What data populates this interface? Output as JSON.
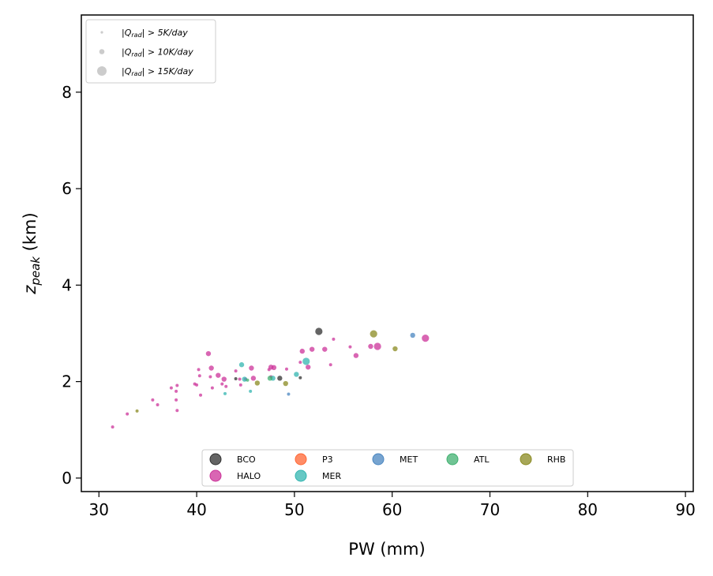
{
  "chart_data": {
    "type": "scatter",
    "title": "",
    "xlabel": "PW (mm)",
    "ylabel_main": "z",
    "ylabel_sub": "peak",
    "ylabel_unit": " (km)",
    "xlim": [
      28.2,
      90.8
    ],
    "ylim": [
      -0.28,
      9.6
    ],
    "xticks": [
      30,
      40,
      50,
      60,
      70,
      80,
      90
    ],
    "yticks": [
      0,
      2,
      4,
      6,
      8
    ],
    "grid": false,
    "size_legend": {
      "placement": "upper-left",
      "entries": [
        {
          "label_main": "|Q",
          "label_sub": "rad",
          "label_rest": "| > 5K/day"
        },
        {
          "label_main": "|Q",
          "label_sub": "rad",
          "label_rest": "| > 10K/day"
        },
        {
          "label_main": "|Q",
          "label_sub": "rad",
          "label_rest": "| > 15K/day"
        }
      ]
    },
    "platform_legend": {
      "placement": "lower-center",
      "entries": [
        {
          "name": "BCO",
          "color": "#303030"
        },
        {
          "name": "HALO",
          "color": "#cc3399"
        },
        {
          "name": "P3",
          "color": "#ff6633"
        },
        {
          "name": "MER",
          "color": "#33b5b0"
        },
        {
          "name": "MET",
          "color": "#4a86c0"
        },
        {
          "name": "ATL",
          "color": "#40b070"
        },
        {
          "name": "RHB",
          "color": "#8a8a20"
        }
      ]
    },
    "series": [
      {
        "name": "HALO",
        "color": "#cc3399",
        "points": [
          {
            "x": 31.4,
            "y": 1.06,
            "s": 1
          },
          {
            "x": 32.9,
            "y": 1.33,
            "s": 1
          },
          {
            "x": 35.5,
            "y": 1.62,
            "s": 1
          },
          {
            "x": 36.0,
            "y": 1.52,
            "s": 1
          },
          {
            "x": 37.4,
            "y": 1.87,
            "s": 1
          },
          {
            "x": 37.9,
            "y": 1.8,
            "s": 1
          },
          {
            "x": 38.0,
            "y": 1.92,
            "s": 1
          },
          {
            "x": 37.9,
            "y": 1.62,
            "s": 1
          },
          {
            "x": 38.0,
            "y": 1.4,
            "s": 1
          },
          {
            "x": 39.8,
            "y": 1.95,
            "s": 1
          },
          {
            "x": 40.0,
            "y": 1.93,
            "s": 1
          },
          {
            "x": 40.2,
            "y": 2.25,
            "s": 1
          },
          {
            "x": 40.3,
            "y": 2.12,
            "s": 1
          },
          {
            "x": 40.4,
            "y": 1.72,
            "s": 1
          },
          {
            "x": 41.2,
            "y": 2.58,
            "s": 2
          },
          {
            "x": 41.5,
            "y": 2.28,
            "s": 2
          },
          {
            "x": 41.4,
            "y": 2.1,
            "s": 1
          },
          {
            "x": 41.6,
            "y": 1.87,
            "s": 1
          },
          {
            "x": 42.2,
            "y": 2.13,
            "s": 2
          },
          {
            "x": 42.6,
            "y": 1.95,
            "s": 1
          },
          {
            "x": 42.8,
            "y": 2.05,
            "s": 2
          },
          {
            "x": 43.0,
            "y": 1.9,
            "s": 1
          },
          {
            "x": 44.0,
            "y": 2.22,
            "s": 1
          },
          {
            "x": 44.4,
            "y": 2.05,
            "s": 1
          },
          {
            "x": 44.5,
            "y": 1.93,
            "s": 1
          },
          {
            "x": 45.0,
            "y": 2.05,
            "s": 1
          },
          {
            "x": 45.6,
            "y": 2.28,
            "s": 2
          },
          {
            "x": 45.8,
            "y": 2.07,
            "s": 2
          },
          {
            "x": 47.4,
            "y": 2.25,
            "s": 1
          },
          {
            "x": 47.6,
            "y": 2.3,
            "s": 2
          },
          {
            "x": 47.9,
            "y": 2.29,
            "s": 2
          },
          {
            "x": 47.6,
            "y": 2.1,
            "s": 1
          },
          {
            "x": 49.2,
            "y": 2.26,
            "s": 1
          },
          {
            "x": 50.6,
            "y": 2.4,
            "s": 1
          },
          {
            "x": 50.8,
            "y": 2.63,
            "s": 2
          },
          {
            "x": 51.4,
            "y": 2.3,
            "s": 2
          },
          {
            "x": 51.8,
            "y": 2.67,
            "s": 2
          },
          {
            "x": 53.1,
            "y": 2.67,
            "s": 2
          },
          {
            "x": 53.7,
            "y": 2.35,
            "s": 1
          },
          {
            "x": 54.0,
            "y": 2.88,
            "s": 1
          },
          {
            "x": 55.7,
            "y": 2.72,
            "s": 1
          },
          {
            "x": 56.3,
            "y": 2.54,
            "s": 2
          },
          {
            "x": 57.8,
            "y": 2.73,
            "s": 2
          },
          {
            "x": 58.5,
            "y": 2.73,
            "s": 3
          },
          {
            "x": 63.4,
            "y": 2.9,
            "s": 3
          }
        ]
      },
      {
        "name": "MER",
        "color": "#33b5b0",
        "points": [
          {
            "x": 42.9,
            "y": 1.75,
            "s": 1
          },
          {
            "x": 44.6,
            "y": 2.35,
            "s": 2
          },
          {
            "x": 44.9,
            "y": 2.05,
            "s": 2
          },
          {
            "x": 45.5,
            "y": 1.8,
            "s": 1
          },
          {
            "x": 47.8,
            "y": 2.07,
            "s": 2
          },
          {
            "x": 50.2,
            "y": 2.15,
            "s": 2
          },
          {
            "x": 51.2,
            "y": 2.42,
            "s": 3
          }
        ]
      },
      {
        "name": "MET",
        "color": "#4a86c0",
        "points": [
          {
            "x": 49.4,
            "y": 1.74,
            "s": 1
          },
          {
            "x": 62.1,
            "y": 2.96,
            "s": 2
          }
        ]
      },
      {
        "name": "ATL",
        "color": "#40b070",
        "points": [
          {
            "x": 45.2,
            "y": 2.03,
            "s": 1
          },
          {
            "x": 47.5,
            "y": 2.07,
            "s": 2
          }
        ]
      },
      {
        "name": "RHB",
        "color": "#8a8a20",
        "points": [
          {
            "x": 33.9,
            "y": 1.39,
            "s": 1
          },
          {
            "x": 46.2,
            "y": 1.97,
            "s": 2
          },
          {
            "x": 49.1,
            "y": 1.96,
            "s": 2
          },
          {
            "x": 58.1,
            "y": 2.99,
            "s": 3
          },
          {
            "x": 60.3,
            "y": 2.68,
            "s": 2
          }
        ]
      },
      {
        "name": "BCO",
        "color": "#303030",
        "points": [
          {
            "x": 44.0,
            "y": 2.06,
            "s": 1
          },
          {
            "x": 48.5,
            "y": 2.07,
            "s": 2
          },
          {
            "x": 50.6,
            "y": 2.08,
            "s": 1
          },
          {
            "x": 52.5,
            "y": 3.04,
            "s": 3
          }
        ]
      }
    ]
  }
}
